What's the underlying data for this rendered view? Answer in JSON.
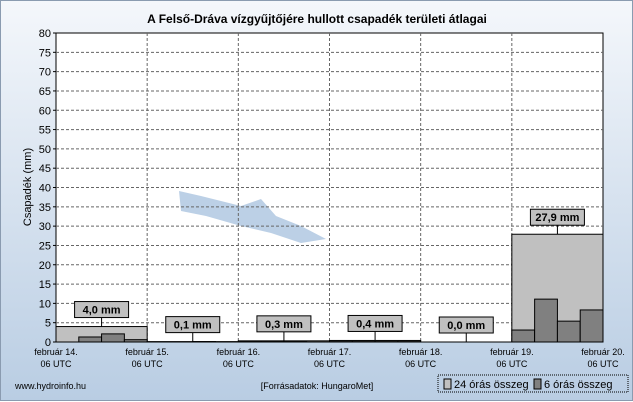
{
  "chart_data": {
    "type": "bar",
    "title": "A Felső-Dráva vízgyűjtőjére hullott csapadék területi átlagai",
    "ylabel": "Csapadék (mm)",
    "ylim": [
      0,
      80
    ],
    "yticks": [
      0,
      5,
      10,
      15,
      20,
      25,
      30,
      35,
      40,
      45,
      50,
      55,
      60,
      65,
      70,
      75,
      80
    ],
    "xticks": [
      [
        "február 14.",
        "06 UTC"
      ],
      [
        "február 15.",
        "06 UTC"
      ],
      [
        "február 16.",
        "06 UTC"
      ],
      [
        "február 17.",
        "06 UTC"
      ],
      [
        "február 18.",
        "06 UTC"
      ],
      [
        "február 19.",
        "06 UTC"
      ],
      [
        "február 20.",
        "06 UTC"
      ]
    ],
    "grid": true,
    "series": [
      {
        "name": "24 órás összeg",
        "values": [
          4.0,
          0.1,
          0.3,
          0.4,
          0.0,
          27.9
        ],
        "labels": [
          "4,0 mm",
          "0,1 mm",
          "0,3 mm",
          "0,4 mm",
          "0,0 mm",
          "27,9 mm"
        ],
        "color": "#c0c0c0"
      },
      {
        "name": "6 órás összeg",
        "values": [
          [
            0,
            1.3,
            2.1,
            0.6
          ],
          [
            0,
            0,
            0.1,
            0
          ],
          [
            0.1,
            0.1,
            0.1,
            0
          ],
          [
            0.1,
            0.1,
            0.1,
            0.1
          ],
          [
            0,
            0,
            0,
            0
          ],
          [
            3.1,
            11.1,
            5.4,
            8.3
          ]
        ],
        "color": "#808080"
      }
    ],
    "legend": "bottom-right"
  },
  "footer": {
    "left": "www.hydroinfo.hu",
    "center": "[Forrásadatok: HungaroMet]"
  }
}
